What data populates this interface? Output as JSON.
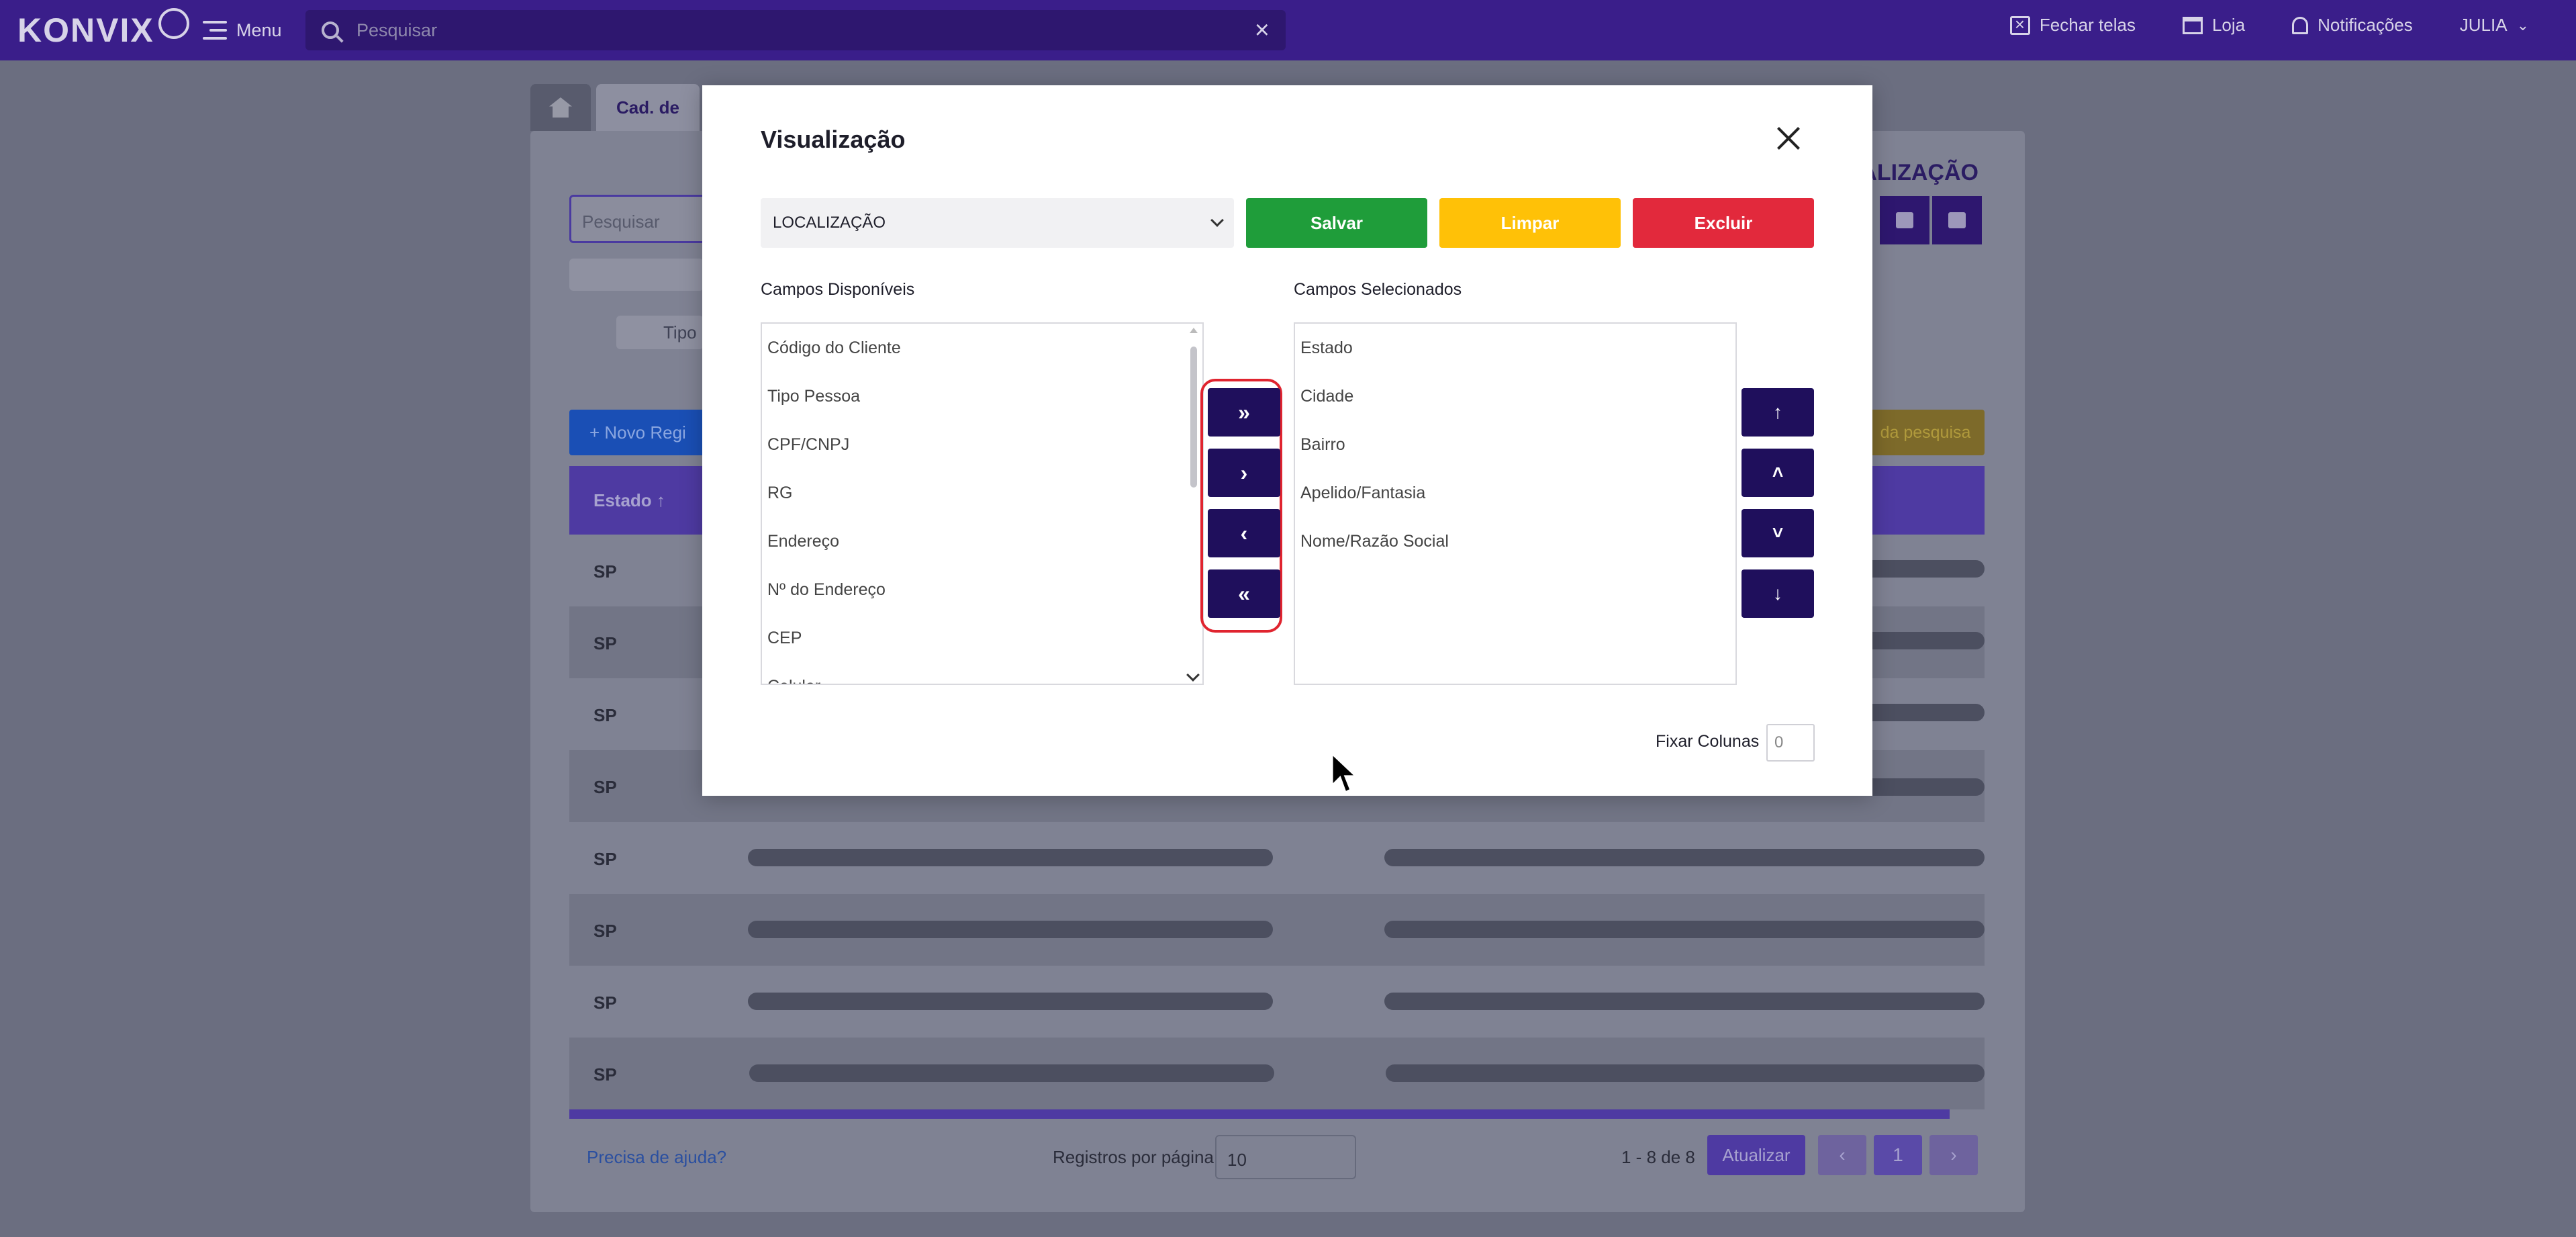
{
  "topbar": {
    "logo": "KONVIX",
    "menu_label": "Menu",
    "search_placeholder": "Pesquisar",
    "close_windows": "Fechar telas",
    "store": "Loja",
    "notifications": "Notificações",
    "user": "JULIA"
  },
  "background": {
    "tab_label": "Cad. de",
    "search_placeholder": "Pesquisar",
    "header_partial": "ALIZAÇÃO",
    "chip_tipo": "Tipo",
    "new_record": "+ Novo Regi",
    "search_results": "da pesquisa",
    "column_estado": "Estado ↑",
    "rows": [
      "SP",
      "SP",
      "SP",
      "SP",
      "SP",
      "SP",
      "SP",
      "SP"
    ],
    "help_link": "Precisa de ajuda?",
    "records_per_page_label": "Registros por página",
    "records_per_page_value": "10",
    "count": "1 - 8 de 8",
    "refresh": "Atualizar",
    "page": "1"
  },
  "modal": {
    "title": "Visualização",
    "view_select_value": "LOCALIZAÇÃO",
    "save": "Salvar",
    "clear": "Limpar",
    "delete": "Excluir",
    "available_label": "Campos Disponíveis",
    "selected_label": "Campos Selecionados",
    "available_fields": [
      "Código do Cliente",
      "Tipo Pessoa",
      "CPF/CNPJ",
      "RG",
      "Endereço",
      "Nº do Endereço",
      "CEP",
      "Celular"
    ],
    "selected_fields": [
      "Estado",
      "Cidade",
      "Bairro",
      "Apelido/Fantasia",
      "Nome/Razão Social"
    ],
    "transfer_buttons": [
      "»",
      "›",
      "‹",
      "«"
    ],
    "order_buttons": [
      "↑",
      "˄",
      "˅",
      "↓"
    ],
    "fix_columns_label": "Fixar Colunas",
    "fix_columns_value": "0"
  },
  "colors": {
    "topbar": "#3a1e8a",
    "save": "#1f9d3a",
    "clear": "#ffc107",
    "delete": "#e2293c",
    "dark_button": "#1f0f5c",
    "highlight": "#e0242f"
  }
}
